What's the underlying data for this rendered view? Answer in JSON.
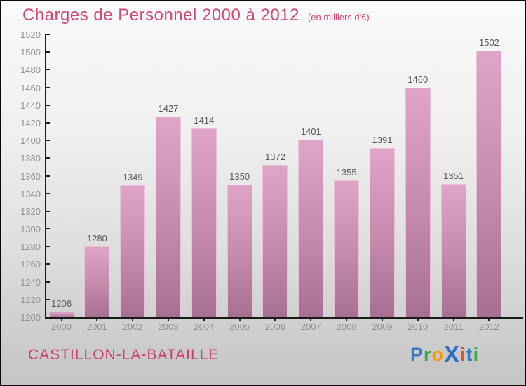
{
  "title": "Charges de Personnel 2000 à 2012",
  "subtitle": "(en milliers d'€)",
  "footer": {
    "commune": "CASTILLON-LA-BATAILLE"
  },
  "logo": {
    "name": "Proxiti",
    "letters": [
      {
        "ch": "P",
        "color": "#3579c8"
      },
      {
        "ch": "r",
        "color": "#41a544"
      },
      {
        "ch": "o",
        "color": "#f49a0b"
      },
      {
        "ch": "X",
        "color": "#2e6fc4",
        "big": true
      },
      {
        "ch": "i",
        "color": "#e2532a"
      },
      {
        "ch": "t",
        "color": "#3579c8"
      },
      {
        "ch": "i",
        "color": "#41a544"
      }
    ]
  },
  "colors": {
    "title_pink": "#d04a73",
    "bar_top": "#dfa4c8",
    "bar_bottom": "#a77093",
    "bar_border": "#e9c2da",
    "axis": "#1a1a1a",
    "tick_label_gray": "#8f8f8f",
    "value_label_gray": "#585858"
  },
  "chart_data": {
    "type": "bar",
    "title": "Charges de Personnel 2000 à 2012",
    "subtitle": "(en milliers d'€)",
    "xlabel": "",
    "ylabel": "milliers d'euros",
    "categories": [
      "2000",
      "2001",
      "2002",
      "2003",
      "2004",
      "2005",
      "2006",
      "2007",
      "2008",
      "2009",
      "2010",
      "2011",
      "2012"
    ],
    "values": [
      1206,
      1280,
      1349,
      1427,
      1414,
      1350,
      1372,
      1401,
      1355,
      1391,
      1460,
      1351,
      1502
    ],
    "ylim": [
      1200,
      1520
    ],
    "ytick_step": 20,
    "yticks": [
      1200,
      1220,
      1240,
      1260,
      1280,
      1300,
      1320,
      1340,
      1360,
      1380,
      1400,
      1420,
      1440,
      1460,
      1480,
      1500,
      1520
    ],
    "grid": false,
    "legend": false,
    "value_labels_shown": true
  }
}
